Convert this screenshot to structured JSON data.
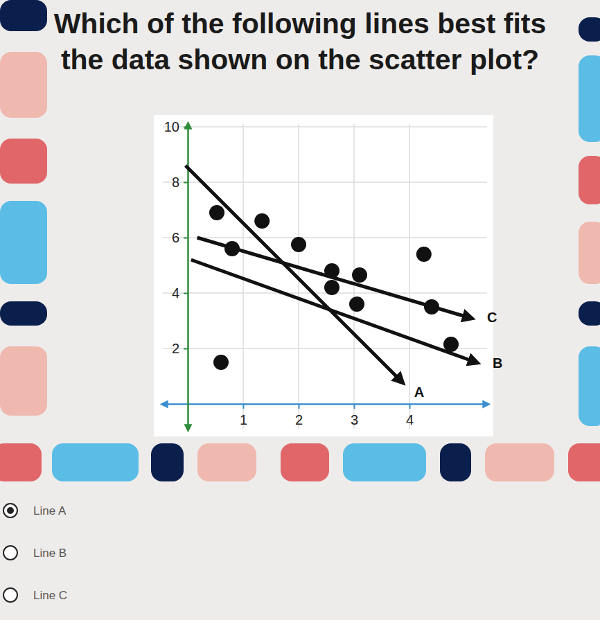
{
  "chart_data": {
    "type": "scatter",
    "title": "Which of the following lines best fits the data shown on the scatter plot?",
    "series": [
      {
        "type": "scatter",
        "color": "#111111",
        "marker": "circle",
        "x": [
          0.525,
          0.8,
          1.34,
          2.0,
          2.6,
          2.6,
          3.1,
          3.05,
          4.26,
          4.4,
          4.75,
          0.6
        ],
        "values": [
          6.9,
          5.6,
          6.6,
          5.75,
          4.8,
          4.2,
          4.65,
          3.6,
          5.4,
          3.5,
          2.15,
          1.5
        ]
      },
      {
        "name": "A",
        "type": "line",
        "color": "#111111",
        "line_style": "solid",
        "x": [
          -0.04,
          3.86
        ],
        "values": [
          8.6,
          0.8
        ]
      },
      {
        "name": "B",
        "type": "line",
        "color": "#111111",
        "line_style": "solid",
        "x": [
          0.06,
          5.2
        ],
        "values": [
          5.2,
          1.5
        ]
      },
      {
        "name": "C",
        "type": "line",
        "color": "#111111",
        "line_style": "solid",
        "x": [
          0.17,
          5.1
        ],
        "values": [
          6.0,
          3.1
        ]
      }
    ],
    "xlim": [
      -0.45,
      5.4
    ],
    "xticks": [
      1,
      2,
      3,
      4
    ],
    "ylim": [
      -0.9,
      10.1
    ],
    "yticks": [
      2,
      4,
      6,
      8,
      10
    ],
    "grid": true
  },
  "options": [
    "Line A",
    "Line B",
    "Line C"
  ],
  "selected": 0
}
